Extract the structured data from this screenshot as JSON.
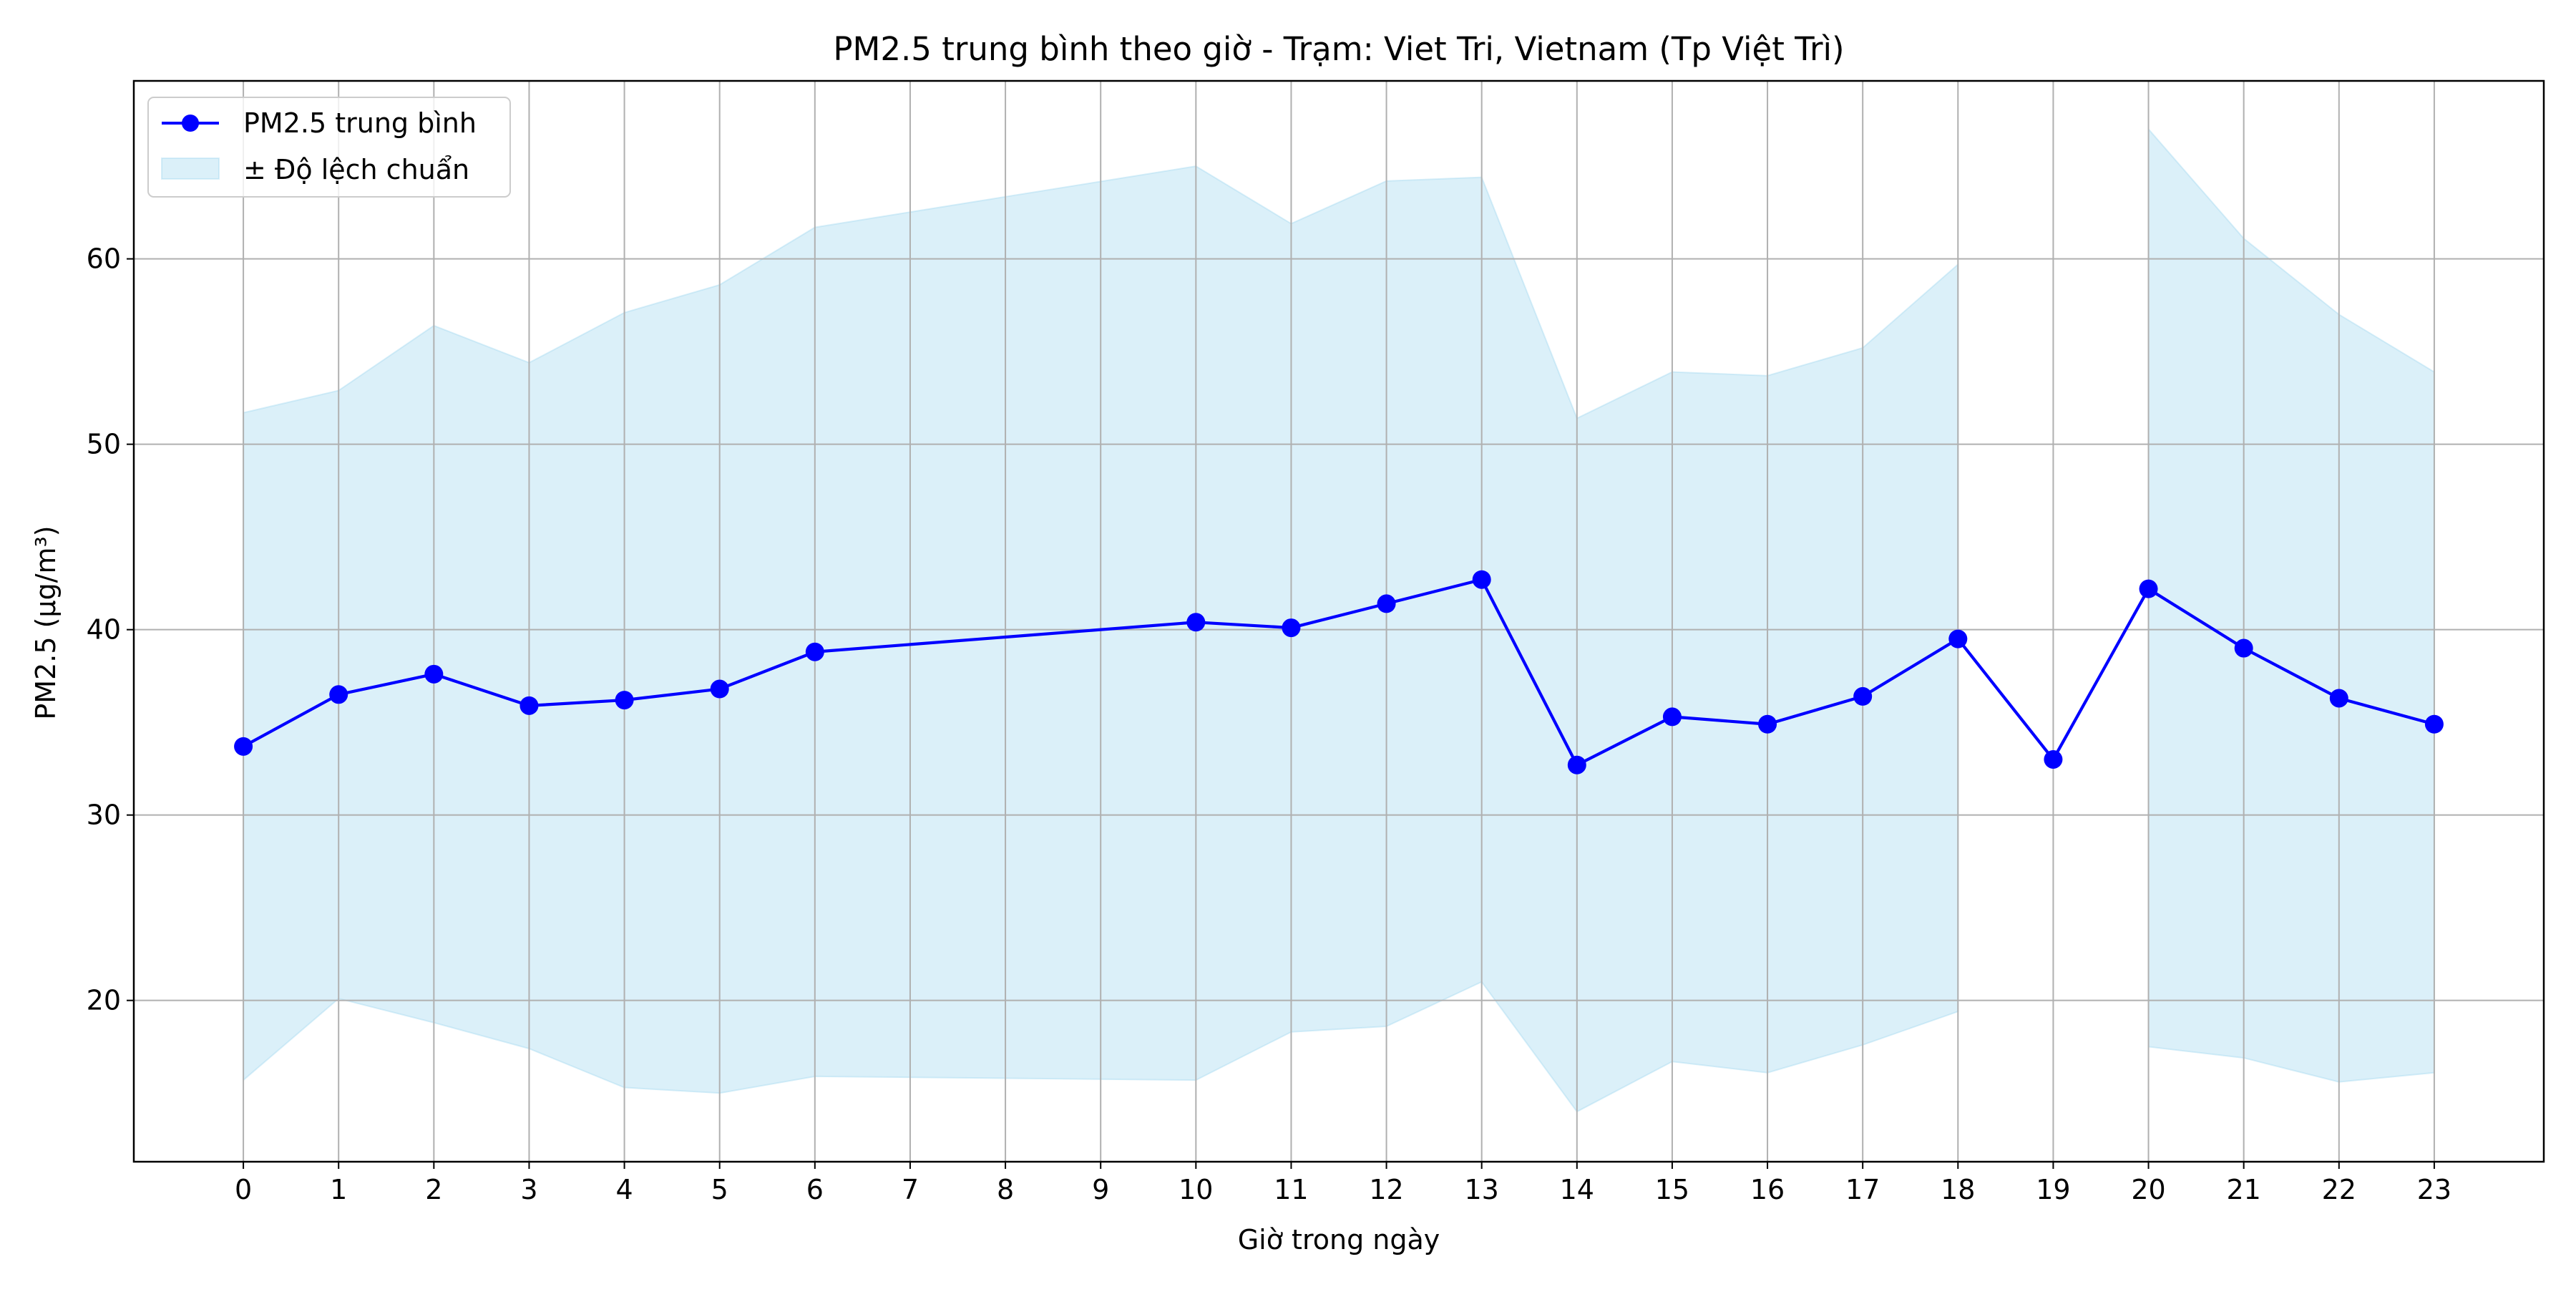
{
  "chart_data": {
    "type": "line",
    "title": "PM2.5 trung bình theo giờ - Trạm: Viet Tri, Vietnam (Tp Việt Trì)",
    "xlabel": "Giờ trong ngày",
    "ylabel": "PM2.5 (µg/m³)",
    "x_ticks": [
      0,
      1,
      2,
      3,
      4,
      5,
      6,
      7,
      8,
      9,
      10,
      11,
      12,
      13,
      14,
      15,
      16,
      17,
      18,
      19,
      20,
      21,
      22,
      23
    ],
    "xlim": [
      -1.15,
      24.15
    ],
    "ylim": [
      11.3,
      69.6
    ],
    "y_ticks": [
      20,
      30,
      40,
      50,
      60
    ],
    "grid": true,
    "legend_position": "top-left",
    "series": [
      {
        "name": "PM2.5 trung bình",
        "color": "#0000ff",
        "marker": "circle",
        "points": [
          {
            "x": 0,
            "y": 33.7
          },
          {
            "x": 1,
            "y": 36.5
          },
          {
            "x": 2,
            "y": 37.6
          },
          {
            "x": 3,
            "y": 35.9
          },
          {
            "x": 4,
            "y": 36.2
          },
          {
            "x": 5,
            "y": 36.8
          },
          {
            "x": 6,
            "y": 38.8
          },
          {
            "x": 10,
            "y": 40.4
          },
          {
            "x": 11,
            "y": 40.1
          },
          {
            "x": 12,
            "y": 41.4
          },
          {
            "x": 13,
            "y": 42.7
          },
          {
            "x": 14,
            "y": 32.7
          },
          {
            "x": 15,
            "y": 35.3
          },
          {
            "x": 16,
            "y": 34.9
          },
          {
            "x": 17,
            "y": 36.4
          },
          {
            "x": 18,
            "y": 39.5
          },
          {
            "x": 19,
            "y": 33.0
          },
          {
            "x": 20,
            "y": 42.2
          },
          {
            "x": 21,
            "y": 39.0
          },
          {
            "x": 22,
            "y": 36.3
          },
          {
            "x": 23,
            "y": 34.9
          }
        ]
      }
    ],
    "band": {
      "name": "± Độ lệch chuẩn",
      "color": "#87ceeb",
      "opacity": 0.3,
      "segments": [
        [
          {
            "x": 0,
            "upper": 51.7,
            "lower": 15.7
          },
          {
            "x": 1,
            "upper": 52.9,
            "lower": 20.1
          },
          {
            "x": 2,
            "upper": 56.4,
            "lower": 18.8
          },
          {
            "x": 3,
            "upper": 54.4,
            "lower": 17.4
          },
          {
            "x": 4,
            "upper": 57.1,
            "lower": 15.3
          },
          {
            "x": 5,
            "upper": 58.6,
            "lower": 15.0
          },
          {
            "x": 6,
            "upper": 61.7,
            "lower": 15.9
          },
          {
            "x": 10,
            "upper": 65.0,
            "lower": 15.7
          },
          {
            "x": 11,
            "upper": 61.9,
            "lower": 18.3
          },
          {
            "x": 12,
            "upper": 64.2,
            "lower": 18.6
          },
          {
            "x": 13,
            "upper": 64.4,
            "lower": 21.0
          },
          {
            "x": 14,
            "upper": 51.4,
            "lower": 14.0
          },
          {
            "x": 15,
            "upper": 53.9,
            "lower": 16.7
          },
          {
            "x": 16,
            "upper": 53.7,
            "lower": 16.1
          },
          {
            "x": 17,
            "upper": 55.2,
            "lower": 17.6
          },
          {
            "x": 18,
            "upper": 59.7,
            "lower": 19.4
          }
        ],
        [
          {
            "x": 20,
            "upper": 67.0,
            "lower": 17.5
          },
          {
            "x": 21,
            "upper": 61.1,
            "lower": 16.9
          },
          {
            "x": 22,
            "upper": 57.0,
            "lower": 15.6
          },
          {
            "x": 23,
            "upper": 53.9,
            "lower": 16.1
          }
        ]
      ]
    }
  }
}
